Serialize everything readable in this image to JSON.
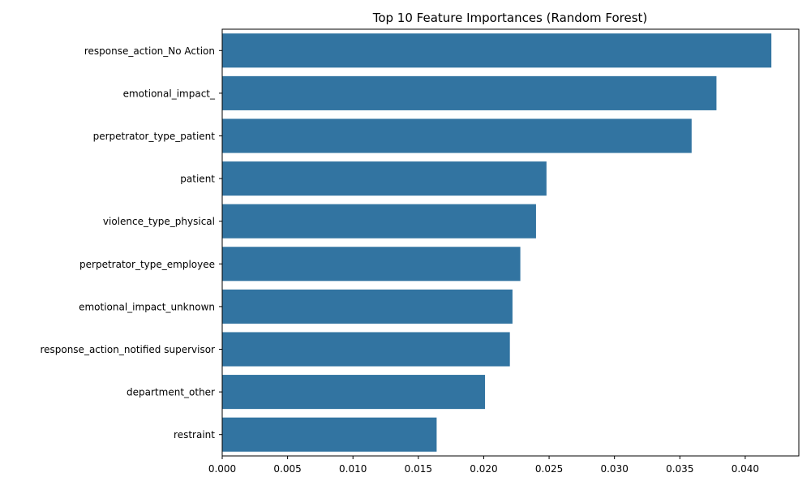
{
  "chart_data": {
    "type": "bar",
    "orientation": "horizontal",
    "title": "Top 10 Feature Importances (Random Forest)",
    "xlabel": "",
    "ylabel": "",
    "categories": [
      "response_action_No Action",
      "emotional_impact_",
      "perpetrator_type_patient",
      "patient",
      "violence_type_physical",
      "perpetrator_type_employee",
      "emotional_impact_unknown",
      "response_action_notified supervisor",
      "department_other",
      "restraint"
    ],
    "values": [
      0.042,
      0.0378,
      0.0359,
      0.0248,
      0.024,
      0.0228,
      0.0222,
      0.022,
      0.0201,
      0.0164
    ],
    "xlim": [
      0,
      0.0441
    ],
    "xticks": [
      0.0,
      0.005,
      0.01,
      0.015,
      0.02,
      0.025,
      0.03,
      0.035,
      0.04
    ],
    "xtick_labels": [
      "0.000",
      "0.005",
      "0.010",
      "0.015",
      "0.020",
      "0.025",
      "0.030",
      "0.035",
      "0.040"
    ],
    "grid": false,
    "bar_color": "#3274a1"
  }
}
